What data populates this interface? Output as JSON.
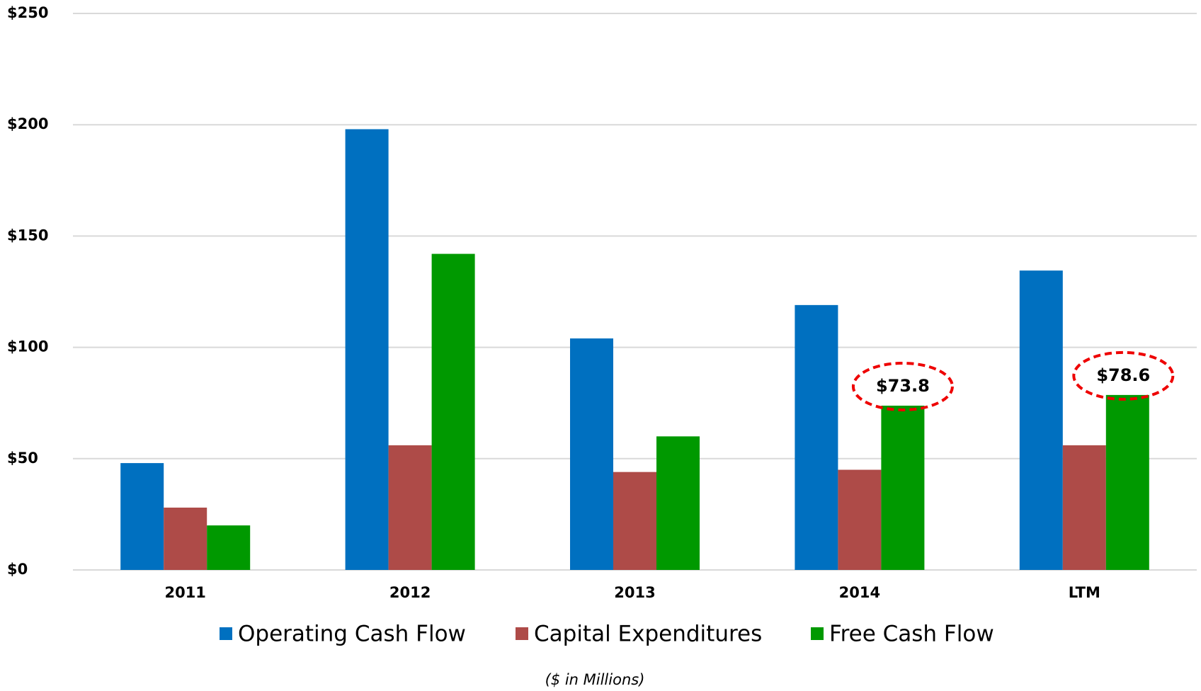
{
  "chart_data": {
    "type": "bar",
    "note": "($ in Millions)",
    "categories": [
      "2011",
      "2012",
      "2013",
      "2014",
      "LTM"
    ],
    "series": [
      {
        "name": "Operating Cash Flow",
        "color": "#0070c0",
        "values": [
          48,
          198,
          104,
          119,
          134.5
        ]
      },
      {
        "name": "Capital Expenditures",
        "color": "#ae4b48",
        "values": [
          28,
          56,
          44,
          45,
          56
        ]
      },
      {
        "name": "Free Cash Flow",
        "color": "#009900",
        "values": [
          20,
          142,
          60,
          73.8,
          78.6
        ],
        "value_labels": [
          null,
          null,
          null,
          "$73.8",
          "$78.6"
        ]
      }
    ],
    "ylim": [
      0,
      250
    ],
    "yticks": [
      {
        "value": 0,
        "label": "$0"
      },
      {
        "value": 50,
        "label": "$50"
      },
      {
        "value": 100,
        "label": "$100"
      },
      {
        "value": 150,
        "label": "$150"
      },
      {
        "value": 200,
        "label": "$200"
      },
      {
        "value": 250,
        "label": "$250"
      }
    ],
    "grid": true,
    "legend": "bottom"
  }
}
